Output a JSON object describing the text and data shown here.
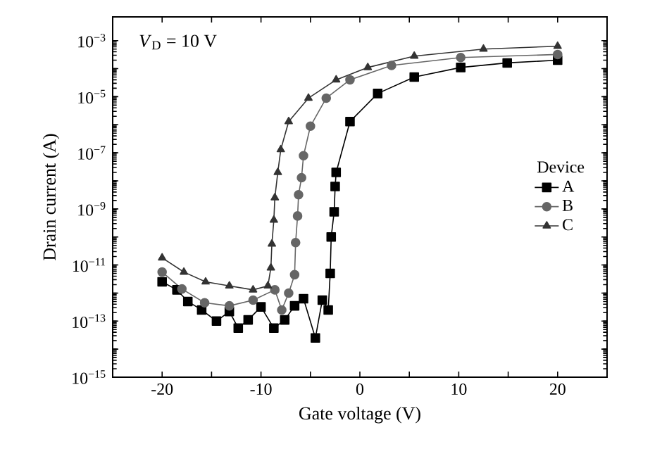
{
  "chart_data": {
    "type": "line",
    "xlabel": "Gate voltage (V)",
    "ylabel": "Drain current (A)",
    "legend_title": "Device",
    "legend": "right",
    "log": "y",
    "annotations": [
      "*V*$_{D}$ = 10 V"
    ],
    "xlim": [
      -25,
      25
    ],
    "ylim": [
      1e-15,
      0.007
    ],
    "xticks": [
      -20,
      {
        "value": -15,
        "label": null
      },
      -10,
      {
        "value": -5,
        "label": null
      },
      0,
      {
        "value": 5,
        "label": null
      },
      10,
      {
        "value": 15,
        "label": null
      },
      20
    ],
    "yticks": [
      {
        "value": 1e-15,
        "label": "10$^{−15}$"
      },
      {
        "value": 1e-14,
        "label": null
      },
      {
        "value": 1e-13,
        "label": "10$^{−13}$"
      },
      {
        "value": 1e-12,
        "label": null
      },
      {
        "value": 1e-11,
        "label": "10$^{−11}$"
      },
      {
        "value": 1e-10,
        "label": null
      },
      {
        "value": 1e-09,
        "label": "10$^{−9}$"
      },
      {
        "value": 1e-08,
        "label": null
      },
      {
        "value": 1e-07,
        "label": "10$^{−7}$"
      },
      {
        "value": 1e-06,
        "label": null
      },
      {
        "value": 1e-05,
        "label": "10$^{−5}$"
      },
      {
        "value": 0.0001,
        "label": null
      },
      {
        "value": 0.001,
        "label": "10$^{−3}$"
      }
    ],
    "series": [
      {
        "name": "A",
        "color": "#000000",
        "marker": "square",
        "x": [
          -20,
          -18.5,
          -17.4,
          -16,
          -14.5,
          -13.2,
          -12.3,
          -11.3,
          -10,
          -8.7,
          -7.6,
          -6.6,
          -5.7,
          -4.5,
          -3.8,
          -3.2,
          -3.0,
          -2.9,
          -2.6,
          -2.5,
          -2.4,
          -1.0,
          1.8,
          5.5,
          10.2,
          14.9,
          20
        ],
        "values": [
          2.5e-12,
          1.3e-12,
          5e-13,
          2.5e-13,
          1e-13,
          2.2e-13,
          5.6e-14,
          1.1e-13,
          3.2e-13,
          5.6e-14,
          1.1e-13,
          3.5e-13,
          6.3e-13,
          2.5e-14,
          5.6e-13,
          2.5e-13,
          5e-12,
          1e-10,
          7.9e-10,
          6.3e-09,
          2e-08,
          1.3e-06,
          1.3e-05,
          5e-05,
          0.00011,
          0.00016,
          0.0002
        ]
      },
      {
        "name": "B",
        "color": "#666666",
        "marker": "circle",
        "x": [
          -20,
          -18,
          -15.7,
          -13.2,
          -10.8,
          -8.6,
          -7.9,
          -7.2,
          -6.6,
          -6.5,
          -6.3,
          -6.2,
          -5.9,
          -5.7,
          -5.0,
          -3.4,
          -1.0,
          3.2,
          10.2,
          20
        ],
        "values": [
          5.6e-12,
          1.4e-12,
          4.5e-13,
          3.5e-13,
          5.6e-13,
          1.3e-12,
          2.5e-13,
          1e-12,
          4.5e-12,
          6.3e-11,
          5.6e-10,
          3.2e-09,
          1.3e-08,
          7.9e-08,
          8.9e-07,
          8.9e-06,
          4e-05,
          0.00013,
          0.00025,
          0.00032
        ]
      },
      {
        "name": "C",
        "color": "#333333",
        "marker": "triangle",
        "x": [
          -20,
          -17.8,
          -15.6,
          -13.2,
          -10.8,
          -9.3,
          -9.0,
          -8.9,
          -8.7,
          -8.6,
          -8.3,
          -8.0,
          -7.2,
          -5.2,
          -2.4,
          0.8,
          5.5,
          12.5,
          20
        ],
        "values": [
          1.8e-11,
          5.6e-12,
          2.5e-12,
          1.8e-12,
          1.3e-12,
          1.8e-12,
          7.9e-12,
          5.6e-11,
          4e-10,
          2.5e-09,
          2e-08,
          1.3e-07,
          1.3e-06,
          8.9e-06,
          4e-05,
          0.00011,
          0.00028,
          0.0005,
          0.00063
        ]
      }
    ]
  }
}
